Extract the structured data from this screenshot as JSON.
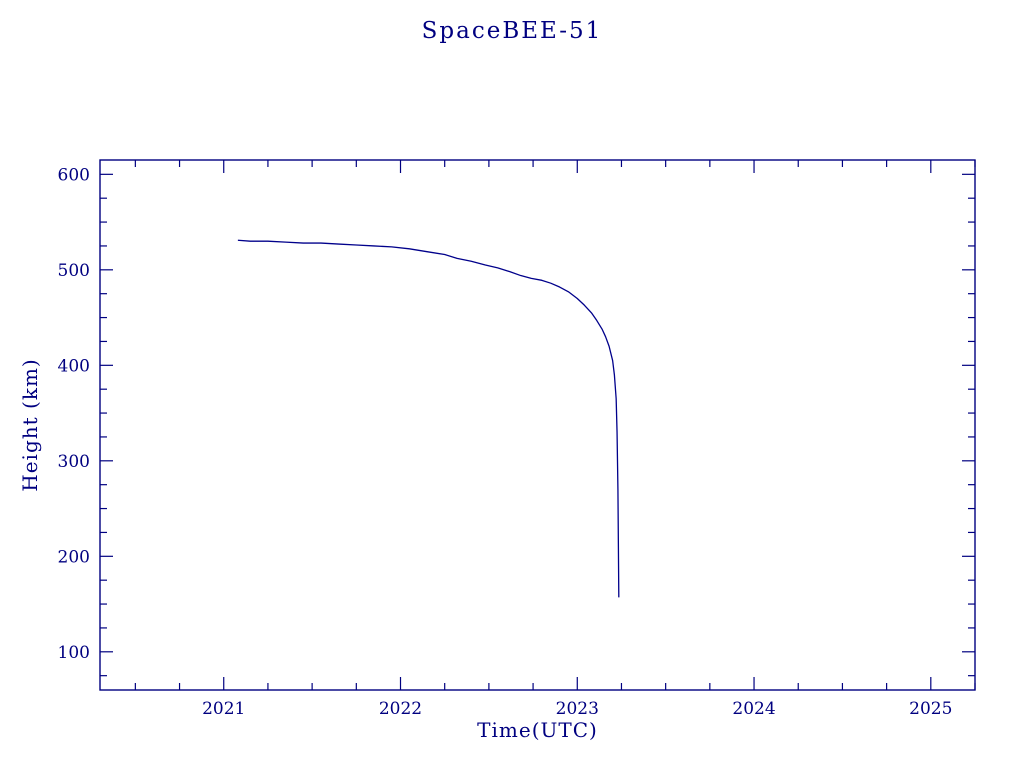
{
  "chart_data": {
    "type": "line",
    "title": "SpaceBEE-51",
    "xlabel": "Time(UTC)",
    "ylabel": "Height (km)",
    "xlim": [
      2020.3,
      2025.25
    ],
    "ylim": [
      60,
      615
    ],
    "x_ticks": [
      2021,
      2022,
      2023,
      2024,
      2025
    ],
    "y_ticks": [
      100,
      200,
      300,
      400,
      500,
      600
    ],
    "x_minor_step": 0.25,
    "y_minor_step": 25,
    "grid": false,
    "legend": "none",
    "axis_color": "#000080",
    "line_color": "#00008b",
    "series": [
      {
        "name": "orbital-height",
        "x": [
          2021.08,
          2021.15,
          2021.25,
          2021.35,
          2021.45,
          2021.55,
          2021.65,
          2021.75,
          2021.85,
          2021.95,
          2022.05,
          2022.15,
          2022.25,
          2022.32,
          2022.4,
          2022.48,
          2022.55,
          2022.62,
          2022.68,
          2022.74,
          2022.8,
          2022.85,
          2022.9,
          2022.95,
          2023.0,
          2023.04,
          2023.08,
          2023.11,
          2023.14,
          2023.16,
          2023.18,
          2023.2,
          2023.21,
          2023.22,
          2023.225,
          2023.23,
          2023.235
        ],
        "y": [
          531,
          530,
          530,
          529,
          528,
          528,
          527,
          526,
          525,
          524,
          522,
          519,
          516,
          512,
          509,
          505,
          502,
          498,
          494,
          491,
          489,
          486,
          482,
          477,
          470,
          463,
          455,
          447,
          438,
          430,
          420,
          405,
          390,
          365,
          330,
          270,
          157
        ]
      }
    ]
  }
}
